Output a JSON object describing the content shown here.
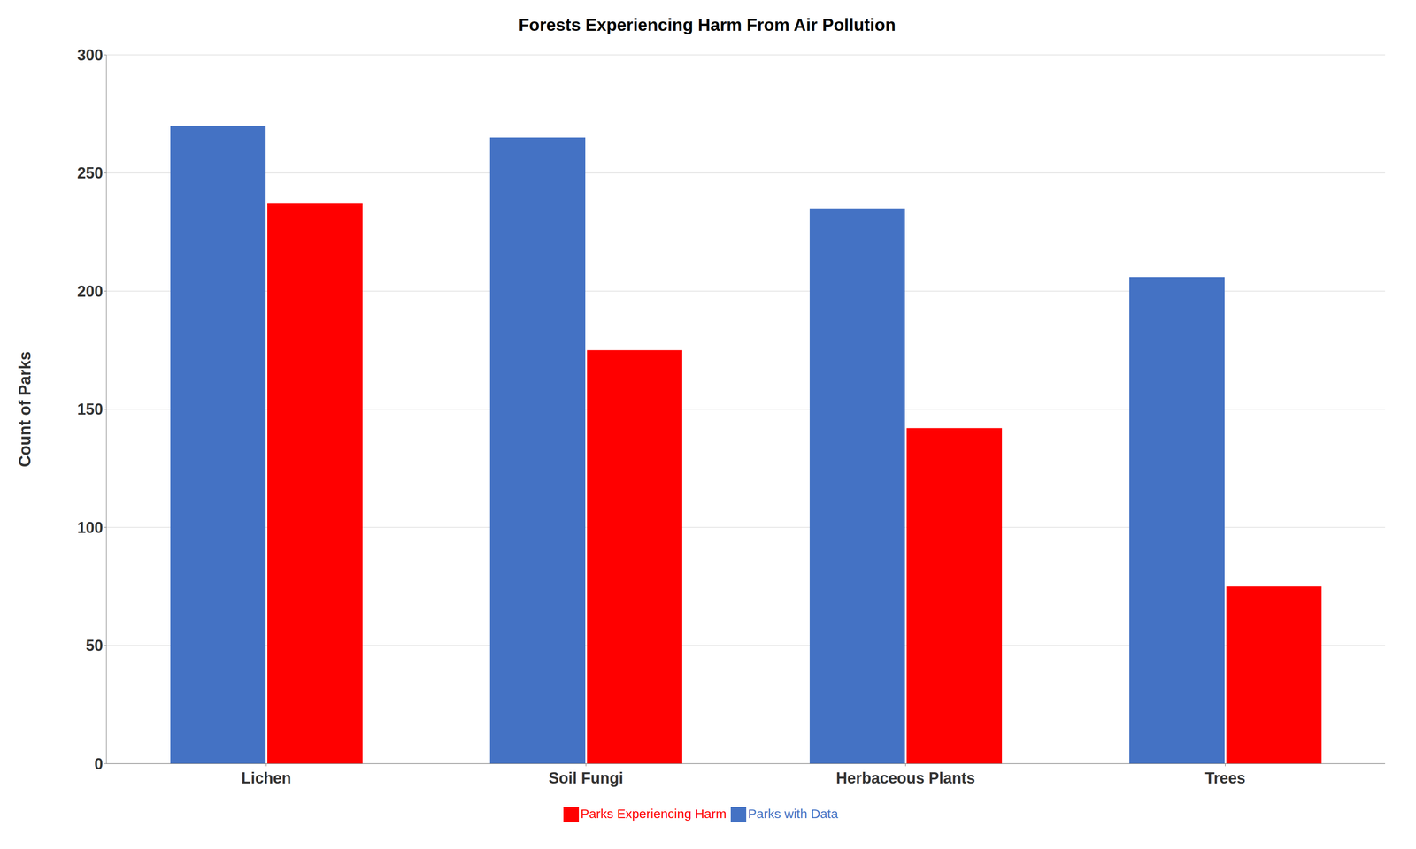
{
  "chart_data": {
    "type": "bar",
    "title": "Forests Experiencing Harm From Air Pollution",
    "categories": [
      "Lichen",
      "Soil Fungi",
      "Herbaceous Plants",
      "Trees"
    ],
    "series": [
      {
        "name": "Parks with Data",
        "color": "#4472C4",
        "values": [
          270,
          265,
          235,
          206
        ]
      },
      {
        "name": "Parks Experiencing Harm",
        "color": "#FF0000",
        "values": [
          237,
          175,
          142,
          75
        ]
      }
    ],
    "ylabel": "Count of Parks",
    "ylim": [
      0,
      300
    ],
    "yticks": [
      0,
      50,
      100,
      150,
      200,
      250,
      300
    ],
    "grid": true,
    "legend": "bottom"
  }
}
